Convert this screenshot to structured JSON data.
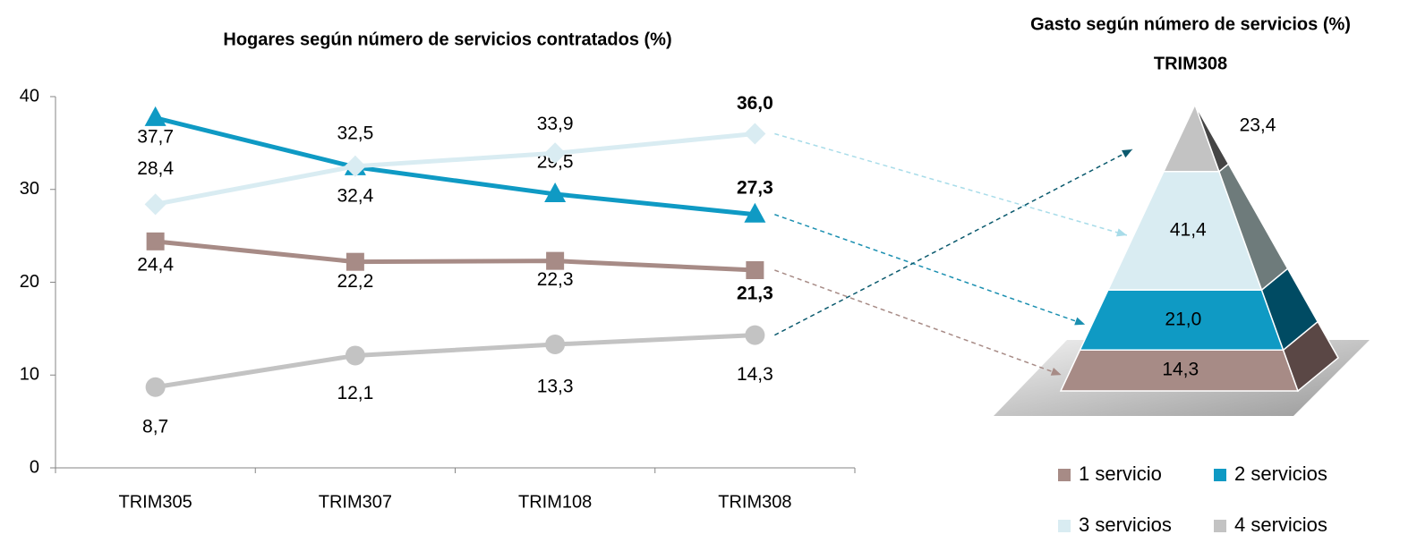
{
  "chart_data": [
    {
      "type": "line",
      "title": "Hogares según número de servicios contratados (%)",
      "categories": [
        "TRIM305",
        "TRIM307",
        "TRIM108",
        "TRIM308"
      ],
      "ylim": [
        0,
        40
      ],
      "yticks": [
        0,
        10,
        20,
        30,
        40
      ],
      "grid": false,
      "series": [
        {
          "color": "#a78b86",
          "marker": "square",
          "values": [
            24.4,
            22.2,
            22.3,
            21.3
          ],
          "value_labels": [
            "24,4",
            "22,2",
            "22,3",
            "21,3"
          ]
        },
        {
          "color": "#0f9ac4",
          "marker": "triangle",
          "values": [
            37.7,
            32.4,
            29.5,
            27.3
          ],
          "value_labels": [
            "37,7",
            "32,4",
            "29,5",
            "27,3"
          ]
        },
        {
          "color": "#d9ecf2",
          "marker": "diamond",
          "values": [
            28.4,
            32.5,
            33.9,
            36.0
          ],
          "value_labels": [
            "28,4",
            "32,5",
            "33,9",
            "36,0"
          ]
        },
        {
          "color": "#c3c3c3",
          "marker": "circle",
          "values": [
            8.7,
            12.1,
            13.3,
            14.3
          ],
          "value_labels": [
            "8,7",
            "12,1",
            "13,3",
            "14,3"
          ]
        }
      ]
    },
    {
      "type": "pyramid",
      "title": "Gasto según número de servicios (%)",
      "subtitle": "TRIM308",
      "categories": [
        "1 servicio",
        "2 servicios",
        "3 servicios",
        "4 servicios"
      ],
      "values": [
        14.3,
        21.0,
        41.4,
        23.4
      ],
      "value_labels": [
        "14,3",
        "21,0",
        "41,4",
        "23,4"
      ],
      "colors": [
        "#a78b86",
        "#0f9ac4",
        "#d9ecf2",
        "#c3c3c3"
      ],
      "side_colors": [
        "#5a4745",
        "#004b63",
        "#6e7b7b",
        "#454545"
      ],
      "legend": "bottom"
    }
  ]
}
